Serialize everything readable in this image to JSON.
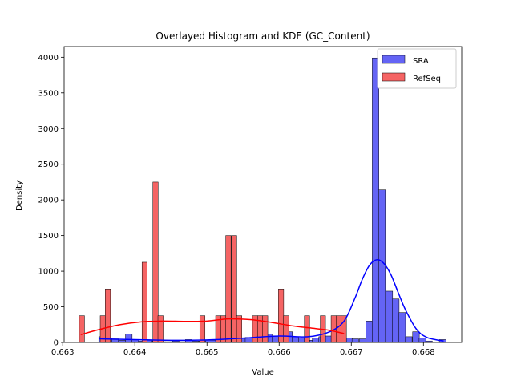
{
  "chart_data": {
    "type": "bar",
    "title": "Overlayed Histogram and KDE (GC_Content)",
    "xlabel": "Value",
    "ylabel": "Density",
    "xlim": [
      0.66302,
      0.66853
    ],
    "ylim": [
      0,
      4150
    ],
    "xticks": [
      0.663,
      0.664,
      0.665,
      0.666,
      0.667,
      0.668
    ],
    "xtick_labels": [
      "0.663",
      "0.664",
      "0.665",
      "0.666",
      "0.667",
      "0.668"
    ],
    "yticks": [
      0,
      500,
      1000,
      1500,
      2000,
      2500,
      3000,
      3500,
      4000
    ],
    "ytick_labels": [
      "0",
      "500",
      "1000",
      "1500",
      "2000",
      "2500",
      "3000",
      "3500",
      "4000"
    ],
    "legend": {
      "position": "top-right",
      "entries": [
        "SRA",
        "RefSeq"
      ]
    },
    "grid": false,
    "colors": {
      "SRA": "#0000ff",
      "RefSeq": "#ff0000",
      "SRA_fill": "#6464f5",
      "RefSeq_fill": "#f56464"
    },
    "series": [
      {
        "name": "SRA",
        "bin_width": 9.25e-05,
        "bins": [
          [
            0.6635,
            80
          ],
          [
            0.66359,
            60
          ],
          [
            0.66368,
            50
          ],
          [
            0.66378,
            30
          ],
          [
            0.66387,
            120
          ],
          [
            0.66396,
            40
          ],
          [
            0.66405,
            20
          ],
          [
            0.66415,
            30
          ],
          [
            0.66424,
            20
          ],
          [
            0.66433,
            10
          ],
          [
            0.66442,
            10
          ],
          [
            0.66452,
            20
          ],
          [
            0.66461,
            10
          ],
          [
            0.6647,
            40
          ],
          [
            0.66479,
            20
          ],
          [
            0.66489,
            20
          ],
          [
            0.66498,
            30
          ],
          [
            0.66507,
            30
          ],
          [
            0.66516,
            40
          ],
          [
            0.66526,
            50
          ],
          [
            0.66535,
            60
          ],
          [
            0.66544,
            60
          ],
          [
            0.66553,
            70
          ],
          [
            0.66563,
            80
          ],
          [
            0.66572,
            100
          ],
          [
            0.66581,
            120
          ],
          [
            0.6659,
            90
          ],
          [
            0.666,
            100
          ],
          [
            0.66609,
            150
          ],
          [
            0.66618,
            80
          ],
          [
            0.66627,
            60
          ],
          [
            0.66637,
            30
          ],
          [
            0.66646,
            60
          ],
          [
            0.66655,
            80
          ],
          [
            0.66664,
            90
          ],
          [
            0.66674,
            150
          ],
          [
            0.66683,
            80
          ],
          [
            0.66692,
            60
          ],
          [
            0.66701,
            50
          ],
          [
            0.66711,
            50
          ],
          [
            0.6672,
            300
          ],
          [
            0.66729,
            3990
          ],
          [
            0.66738,
            2140
          ],
          [
            0.66748,
            720
          ],
          [
            0.66757,
            610
          ],
          [
            0.66766,
            420
          ],
          [
            0.66775,
            80
          ],
          [
            0.66785,
            150
          ],
          [
            0.66794,
            60
          ],
          [
            0.66803,
            20
          ],
          [
            0.66822,
            40
          ]
        ],
        "kde_x": [
          0.6635,
          0.664,
          0.6645,
          0.665,
          0.6655,
          0.666,
          0.6664,
          0.6667,
          0.6669,
          0.66705,
          0.66715,
          0.66725,
          0.66735,
          0.66745,
          0.66755,
          0.66765,
          0.66775,
          0.6679,
          0.66805,
          0.66828
        ],
        "kde_y": [
          50,
          40,
          30,
          35,
          60,
          90,
          80,
          150,
          300,
          620,
          880,
          1080,
          1160,
          1110,
          950,
          700,
          460,
          190,
          70,
          20
        ]
      },
      {
        "name": "RefSeq",
        "bin_width": 7.25e-05,
        "bins": [
          [
            0.66323,
            375
          ],
          [
            0.66352,
            375
          ],
          [
            0.66359,
            750
          ],
          [
            0.6641,
            1125
          ],
          [
            0.66425,
            2250
          ],
          [
            0.66432,
            375
          ],
          [
            0.6649,
            375
          ],
          [
            0.66512,
            375
          ],
          [
            0.66519,
            375
          ],
          [
            0.66526,
            1500
          ],
          [
            0.66534,
            1500
          ],
          [
            0.66541,
            375
          ],
          [
            0.66563,
            375
          ],
          [
            0.6657,
            375
          ],
          [
            0.66577,
            375
          ],
          [
            0.66599,
            750
          ],
          [
            0.66606,
            375
          ],
          [
            0.66635,
            375
          ],
          [
            0.66657,
            375
          ],
          [
            0.66672,
            375
          ],
          [
            0.66679,
            375
          ],
          [
            0.66686,
            375
          ]
        ],
        "kde_x": [
          0.66325,
          0.6635,
          0.6638,
          0.6641,
          0.6644,
          0.6647,
          0.665,
          0.6653,
          0.6656,
          0.6659,
          0.6662,
          0.6665,
          0.6667,
          0.6669
        ],
        "kde_y": [
          110,
          180,
          250,
          290,
          300,
          295,
          300,
          330,
          320,
          280,
          230,
          195,
          170,
          125
        ]
      }
    ]
  }
}
